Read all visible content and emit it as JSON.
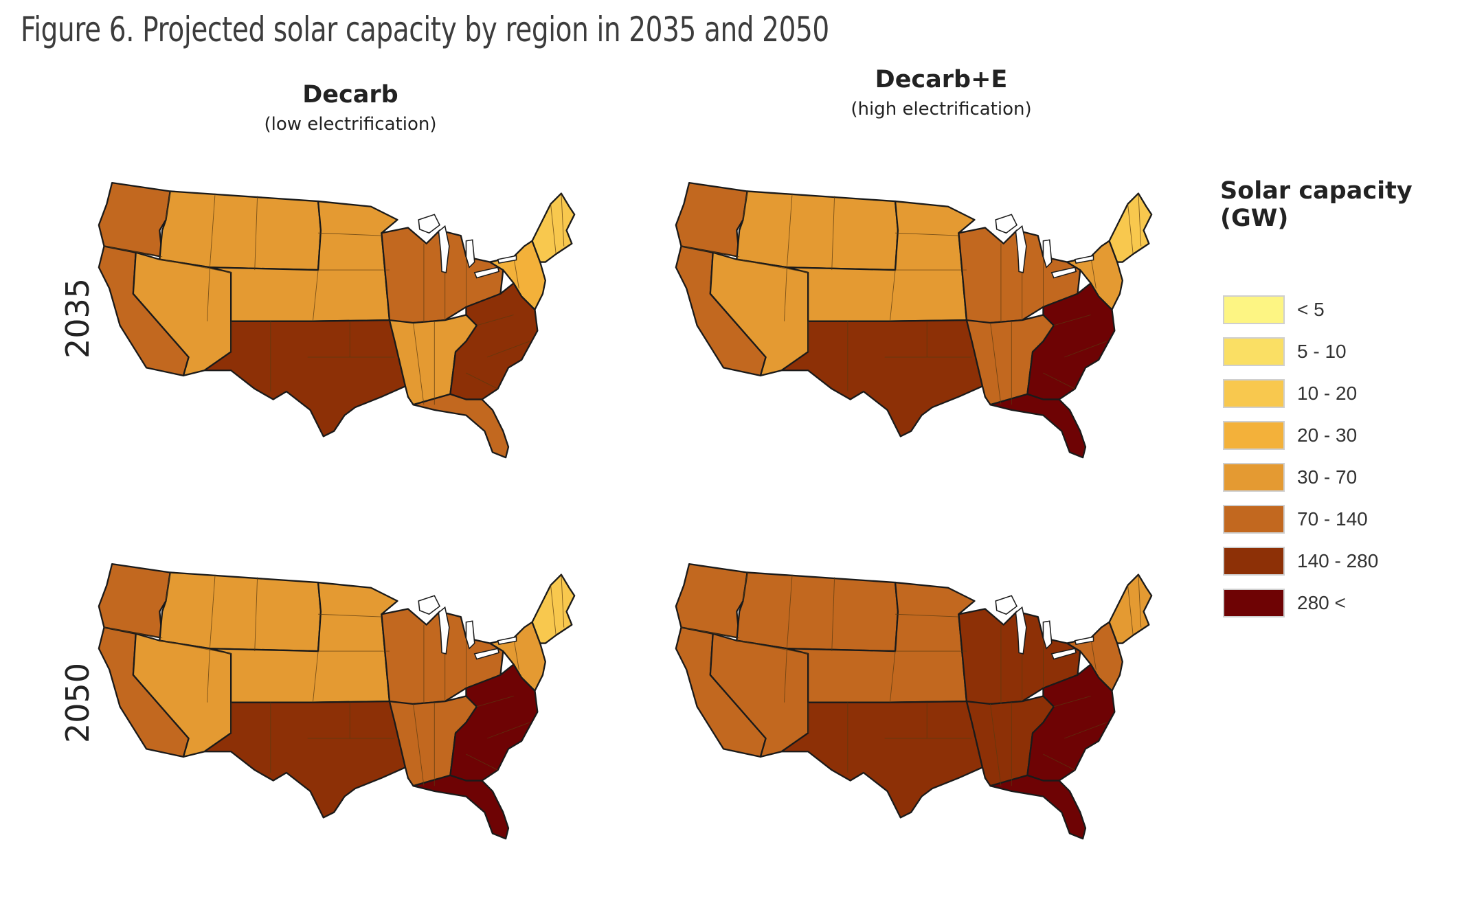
{
  "title": "Figure 6. Projected solar capacity by region in 2035 and 2050",
  "columns": [
    {
      "title": "Decarb",
      "subtitle": "(low electrification)"
    },
    {
      "title": "Decarb+E",
      "subtitle": "(high electrification)"
    }
  ],
  "rows": [
    "2035",
    "2050"
  ],
  "legend": {
    "title": "Solar capacity (GW)",
    "items": [
      {
        "label": "< 5",
        "color": "#fdf583"
      },
      {
        "label": "5 - 10",
        "color": "#fadf64"
      },
      {
        "label": "10 - 20",
        "color": "#f8c84e"
      },
      {
        "label": "20 - 30",
        "color": "#f3b13a"
      },
      {
        "label": "30 - 70",
        "color": "#e49a32"
      },
      {
        "label": "70 - 140",
        "color": "#c2681f"
      },
      {
        "label": "140 - 280",
        "color": "#8d3006"
      },
      {
        "label": "280 <",
        "color": "#6e0304"
      }
    ]
  },
  "panels": [
    {
      "scenario": "Decarb",
      "year": "2035",
      "regions": {
        "northwest": "70 - 140",
        "california": "70 - 140",
        "rockies": "30 - 70",
        "southwest": "30 - 70",
        "plains": "30 - 70",
        "texas_south_central": "140 - 280",
        "midwest": "70 - 140",
        "southeast": "30 - 70",
        "atlantic": "140 - 280",
        "florida": "70 - 140",
        "mid_atlantic": "20 - 30",
        "new_england": "10 - 20"
      }
    },
    {
      "scenario": "Decarb+E",
      "year": "2035",
      "regions": {
        "northwest": "70 - 140",
        "california": "70 - 140",
        "rockies": "30 - 70",
        "southwest": "30 - 70",
        "plains": "30 - 70",
        "texas_south_central": "140 - 280",
        "midwest": "70 - 140",
        "southeast": "70 - 140",
        "atlantic": "280 <",
        "florida": "280 <",
        "mid_atlantic": "30 - 70",
        "new_england": "10 - 20"
      }
    },
    {
      "scenario": "Decarb",
      "year": "2050",
      "regions": {
        "northwest": "70 - 140",
        "california": "70 - 140",
        "rockies": "30 - 70",
        "southwest": "30 - 70",
        "plains": "30 - 70",
        "texas_south_central": "140 - 280",
        "midwest": "70 - 140",
        "southeast": "70 - 140",
        "atlantic": "280 <",
        "florida": "280 <",
        "mid_atlantic": "30 - 70",
        "new_england": "10 - 20"
      }
    },
    {
      "scenario": "Decarb+E",
      "year": "2050",
      "regions": {
        "northwest": "70 - 140",
        "california": "70 - 140",
        "rockies": "70 - 140",
        "southwest": "70 - 140",
        "plains": "70 - 140",
        "texas_south_central": "140 - 280",
        "midwest": "140 - 280",
        "southeast": "140 - 280",
        "atlantic": "280 <",
        "florida": "280 <",
        "mid_atlantic": "70 - 140",
        "new_england": "30 - 70"
      }
    }
  ]
}
